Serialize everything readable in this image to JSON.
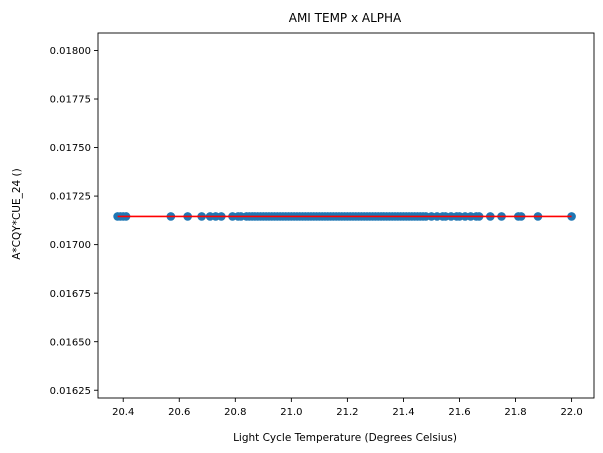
{
  "chart_data": {
    "type": "scatter",
    "title": "AMI TEMP x ALPHA",
    "xlabel": "Light Cycle Temperature (Degrees Celsius)",
    "ylabel": "A*CQY*CUE_24 ()",
    "xlim": [
      20.31,
      22.08
    ],
    "ylim": [
      0.01621,
      0.01809
    ],
    "xticks": [
      "20.4",
      "20.6",
      "20.8",
      "21.0",
      "21.2",
      "21.4",
      "21.6",
      "21.8",
      "22.0"
    ],
    "yticks": [
      "0.01625",
      "0.01650",
      "0.01675",
      "0.01700",
      "0.01725",
      "0.01750",
      "0.01775",
      "0.01800"
    ],
    "grid": false,
    "colors": {
      "points": "#1f77b4",
      "fit_line": "#ff0000"
    },
    "series": [
      {
        "x": [
          20.38,
          20.39,
          20.4,
          20.41,
          20.57,
          20.63,
          20.68,
          20.71,
          20.73,
          20.75,
          20.79,
          20.81,
          20.82,
          20.84,
          20.85,
          20.86,
          20.87,
          20.88,
          20.89,
          20.9,
          20.91,
          20.92,
          20.93,
          20.94,
          20.95,
          20.96,
          20.97,
          20.98,
          20.99,
          21.0,
          21.01,
          21.02,
          21.03,
          21.04,
          21.05,
          21.06,
          21.07,
          21.08,
          21.09,
          21.1,
          21.11,
          21.12,
          21.13,
          21.14,
          21.15,
          21.16,
          21.17,
          21.18,
          21.19,
          21.2,
          21.21,
          21.22,
          21.23,
          21.24,
          21.25,
          21.26,
          21.27,
          21.28,
          21.29,
          21.3,
          21.31,
          21.32,
          21.33,
          21.34,
          21.35,
          21.36,
          21.37,
          21.38,
          21.39,
          21.4,
          21.41,
          21.42,
          21.43,
          21.44,
          21.45,
          21.46,
          21.47,
          21.48,
          21.5,
          21.52,
          21.54,
          21.55,
          21.57,
          21.59,
          21.6,
          21.62,
          21.64,
          21.66,
          21.67,
          21.71,
          21.75,
          21.81,
          21.82,
          21.88,
          22.0
        ],
        "y": [
          0.017145,
          0.017145,
          0.017145,
          0.017145,
          0.017145,
          0.017145,
          0.017145,
          0.017145,
          0.017145,
          0.017145,
          0.017145,
          0.017145,
          0.017145,
          0.017145,
          0.017145,
          0.017145,
          0.017145,
          0.017145,
          0.017145,
          0.017145,
          0.017145,
          0.017145,
          0.017145,
          0.017145,
          0.017145,
          0.017145,
          0.017145,
          0.017145,
          0.017145,
          0.017145,
          0.017145,
          0.017145,
          0.017145,
          0.017145,
          0.017145,
          0.017145,
          0.017145,
          0.017145,
          0.017145,
          0.017145,
          0.017145,
          0.017145,
          0.017145,
          0.017145,
          0.017145,
          0.017145,
          0.017145,
          0.017145,
          0.017145,
          0.017145,
          0.017145,
          0.017145,
          0.017145,
          0.017145,
          0.017145,
          0.017145,
          0.017145,
          0.017145,
          0.017145,
          0.017145,
          0.017145,
          0.017145,
          0.017145,
          0.017145,
          0.017145,
          0.017145,
          0.017145,
          0.017145,
          0.017145,
          0.017145,
          0.017145,
          0.017145,
          0.017145,
          0.017145,
          0.017145,
          0.017145,
          0.017145,
          0.017145,
          0.017145,
          0.017145,
          0.017145,
          0.017145,
          0.017145,
          0.017145,
          0.017145,
          0.017145,
          0.017145,
          0.017145,
          0.017145,
          0.017145,
          0.017145,
          0.017145,
          0.017145,
          0.017145,
          0.017145
        ]
      }
    ],
    "fit_line": {
      "x": [
        20.38,
        22.0
      ],
      "y": [
        0.017145,
        0.017145
      ]
    }
  }
}
